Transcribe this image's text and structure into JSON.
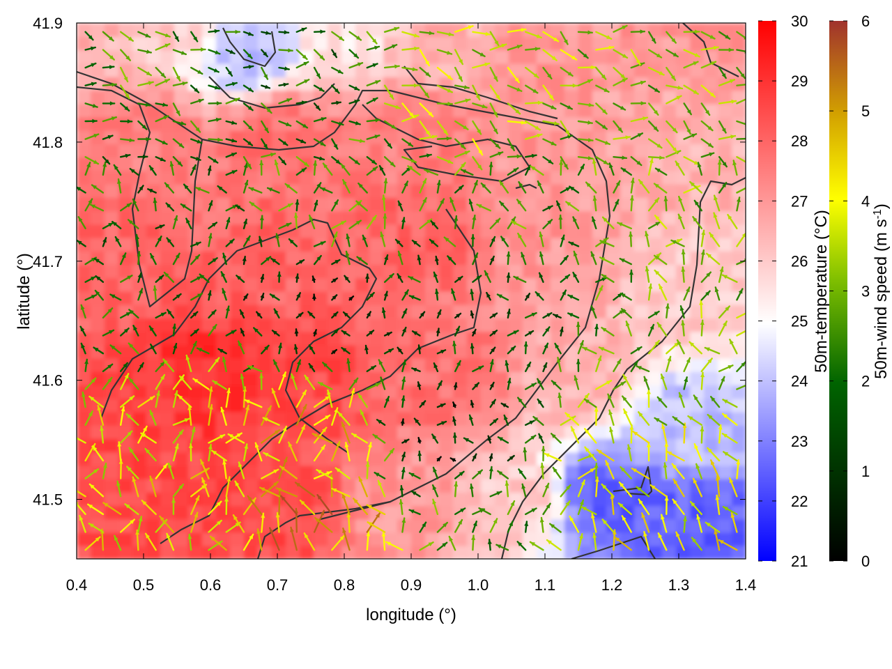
{
  "chart_data": {
    "type": "heatmap",
    "xlabel": "longitude (°)",
    "ylabel": "latitude (°)",
    "xlim": [
      0.4,
      1.4
    ],
    "ylim": [
      41.45,
      41.9
    ],
    "x_ticks": [
      "0.4",
      "0.5",
      "0.6",
      "0.7",
      "0.8",
      "0.9",
      "1.0",
      "1.1",
      "1.2",
      "1.3",
      "1.4"
    ],
    "y_ticks": [
      "41.5",
      "41.6",
      "41.7",
      "41.8",
      "41.9"
    ],
    "temperature_colorbar": {
      "label": "50m-temperature (°C)",
      "range": [
        21,
        30
      ],
      "ticks": [
        "21",
        "22",
        "23",
        "24",
        "25",
        "26",
        "27",
        "28",
        "29",
        "30"
      ],
      "colors": [
        "#0000ff",
        "#ffffff",
        "#ff0000"
      ]
    },
    "wind_colorbar": {
      "label": "50m-wind speed (m s-1)",
      "range": [
        0,
        6
      ],
      "ticks": [
        "0",
        "1",
        "2",
        "3",
        "4",
        "5",
        "6"
      ],
      "colors": [
        "#000000",
        "#006400",
        "#7fbf00",
        "#ffff00",
        "#d2a000",
        "#a0322d"
      ]
    },
    "temperature_field": [
      {
        "lon": 0.4,
        "lat": 41.9,
        "t": 26.5
      },
      {
        "lon": 0.55,
        "lat": 41.9,
        "t": 26.0
      },
      {
        "lon": 0.65,
        "lat": 41.88,
        "t": 24.0
      },
      {
        "lon": 0.8,
        "lat": 41.9,
        "t": 25.5
      },
      {
        "lon": 0.95,
        "lat": 41.88,
        "t": 26.5
      },
      {
        "lon": 1.1,
        "lat": 41.88,
        "t": 27.0
      },
      {
        "lon": 1.3,
        "lat": 41.88,
        "t": 27.0
      },
      {
        "lon": 0.5,
        "lat": 41.8,
        "t": 27.5
      },
      {
        "lon": 0.7,
        "lat": 41.8,
        "t": 27.8
      },
      {
        "lon": 0.9,
        "lat": 41.8,
        "t": 27.5
      },
      {
        "lon": 1.1,
        "lat": 41.8,
        "t": 27.0
      },
      {
        "lon": 1.3,
        "lat": 41.8,
        "t": 26.5
      },
      {
        "lon": 0.45,
        "lat": 41.7,
        "t": 28.0
      },
      {
        "lon": 0.7,
        "lat": 41.7,
        "t": 28.0
      },
      {
        "lon": 0.9,
        "lat": 41.72,
        "t": 28.0
      },
      {
        "lon": 1.1,
        "lat": 41.7,
        "t": 27.0
      },
      {
        "lon": 1.3,
        "lat": 41.68,
        "t": 26.0
      },
      {
        "lon": 0.6,
        "lat": 41.6,
        "t": 29.0
      },
      {
        "lon": 0.75,
        "lat": 41.6,
        "t": 28.5
      },
      {
        "lon": 0.95,
        "lat": 41.6,
        "t": 27.8
      },
      {
        "lon": 1.15,
        "lat": 41.6,
        "t": 26.5
      },
      {
        "lon": 1.3,
        "lat": 41.56,
        "t": 24.0
      },
      {
        "lon": 0.5,
        "lat": 41.5,
        "t": 28.5
      },
      {
        "lon": 0.7,
        "lat": 41.5,
        "t": 28.5
      },
      {
        "lon": 0.9,
        "lat": 41.5,
        "t": 27.0
      },
      {
        "lon": 1.05,
        "lat": 41.5,
        "t": 26.0
      },
      {
        "lon": 1.2,
        "lat": 41.5,
        "t": 22.5
      },
      {
        "lon": 1.32,
        "lat": 41.48,
        "t": 22.5
      }
    ],
    "wind_field": [
      {
        "lon": 0.45,
        "lat": 41.85,
        "speed": 2.5
      },
      {
        "lon": 0.7,
        "lat": 41.85,
        "speed": 2.0
      },
      {
        "lon": 1.0,
        "lat": 41.85,
        "speed": 3.5
      },
      {
        "lon": 1.3,
        "lat": 41.85,
        "speed": 3.0
      },
      {
        "lon": 0.5,
        "lat": 41.75,
        "speed": 2.0
      },
      {
        "lon": 0.8,
        "lat": 41.75,
        "speed": 2.5
      },
      {
        "lon": 1.1,
        "lat": 41.75,
        "speed": 2.5
      },
      {
        "lon": 1.3,
        "lat": 41.75,
        "speed": 3.0
      },
      {
        "lon": 0.5,
        "lat": 41.65,
        "speed": 2.0
      },
      {
        "lon": 0.75,
        "lat": 41.65,
        "speed": 1.0
      },
      {
        "lon": 1.0,
        "lat": 41.65,
        "speed": 1.5
      },
      {
        "lon": 1.3,
        "lat": 41.6,
        "speed": 3.0
      },
      {
        "lon": 0.55,
        "lat": 41.55,
        "speed": 4.0
      },
      {
        "lon": 0.75,
        "lat": 41.55,
        "speed": 4.5
      },
      {
        "lon": 0.95,
        "lat": 41.55,
        "speed": 1.0
      },
      {
        "lon": 1.25,
        "lat": 41.52,
        "speed": 4.0
      },
      {
        "lon": 0.5,
        "lat": 41.48,
        "speed": 4.0
      },
      {
        "lon": 0.75,
        "lat": 41.48,
        "speed": 5.0
      },
      {
        "lon": 1.0,
        "lat": 41.48,
        "speed": 2.5
      },
      {
        "lon": 1.3,
        "lat": 41.48,
        "speed": 4.0
      }
    ],
    "grid": false,
    "legend": "colorbars-right"
  }
}
